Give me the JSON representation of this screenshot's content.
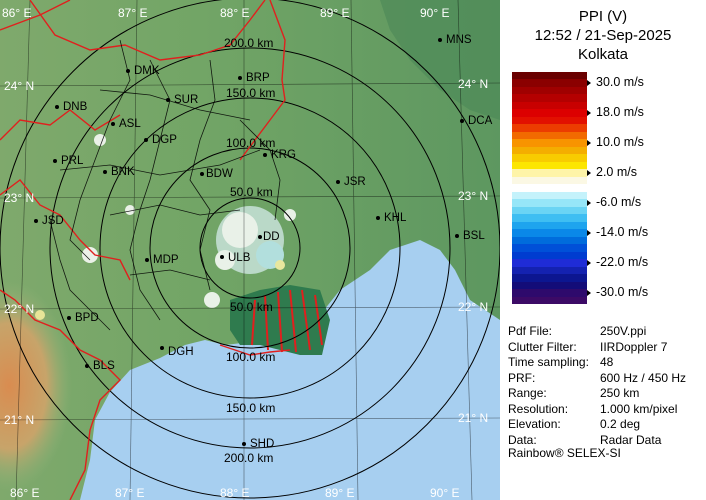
{
  "panel": {
    "title": "PPI (V)",
    "datetime": "12:52 / 21-Sep-2025",
    "station": "Kolkata",
    "colorbar": {
      "colors": [
        "#6a0000",
        "#8b0000",
        "#a00000",
        "#b40000",
        "#c80000",
        "#dc0000",
        "#e21000",
        "#ec3c00",
        "#f26a00",
        "#f89400",
        "#f4ae00",
        "#f8cc00",
        "#fce600",
        "#fef4a8",
        "#fbf8e4",
        "#ffffff",
        "#c4f2fb",
        "#96e6f8",
        "#6ad4f4",
        "#3ebef2",
        "#1ea4ee",
        "#0a88e8",
        "#006cdc",
        "#0050d8",
        "#003cd0",
        "#1f2cd6",
        "#1422b0",
        "#0c1690",
        "#130c78",
        "#2e0a6c",
        "#3c0a66"
      ],
      "labels": [
        {
          "text": "30.0 m/s",
          "row": 1
        },
        {
          "text": "18.0 m/s",
          "row": 5
        },
        {
          "text": "10.0 m/s",
          "row": 9
        },
        {
          "text": "2.0 m/s",
          "row": 13
        },
        {
          "text": "-6.0 m/s",
          "row": 17
        },
        {
          "text": "-14.0 m/s",
          "row": 21
        },
        {
          "text": "-22.0 m/s",
          "row": 25
        },
        {
          "text": "-30.0 m/s",
          "row": 29
        }
      ]
    },
    "info": [
      {
        "key": "Pdf File:",
        "value": "250V.ppi"
      },
      {
        "key": "Clutter Filter:",
        "value": "IIRDoppler 7"
      },
      {
        "key": "Time sampling:",
        "value": "48"
      },
      {
        "key": "PRF:",
        "value": "600 Hz / 450 Hz"
      },
      {
        "key": "Range:",
        "value": "250 km"
      },
      {
        "key": "Resolution:",
        "value": "1.000 km/pixel"
      },
      {
        "key": "Elevation:",
        "value": "0.2 deg"
      },
      {
        "key": "Data:",
        "value": "Radar Data"
      }
    ],
    "footer": "Rainbow® SELEX-SI"
  },
  "map": {
    "lon_labels_top": [
      "86° E",
      "87° E",
      "88° E",
      "89° E",
      "90° E"
    ],
    "lon_labels_bottom": [
      "86° E",
      "87° E",
      "88° E",
      "89° E",
      "90° E"
    ],
    "lat_labels_left": [
      "24° N",
      "23° N",
      "22° N",
      "21° N"
    ],
    "lat_labels_right": [
      "24° N",
      "23° N",
      "22° N",
      "21° N"
    ],
    "ring_labels": [
      "50.0 km",
      "100.0 km",
      "150.0 km",
      "200.0 km",
      "150.0 km",
      "200.0 km",
      "50.0 km",
      "100.0 km"
    ],
    "stations": [
      "MNS",
      "DMK",
      "BRP",
      "DNB",
      "SUR",
      "DCA",
      "ASL",
      "DGP",
      "KRG",
      "PRL",
      "BNK",
      "BDW",
      "JSR",
      "JSD",
      "KHL",
      "DD",
      "BSL",
      "MDP",
      "ULB",
      "BPD",
      "DGH",
      "BLS",
      "SHD"
    ],
    "colors": {
      "sea": "#a7cff0",
      "land_low": "#8cb87a",
      "land_high": "#c98a5a",
      "border_state": "#e0201e",
      "border_district": "#000000"
    }
  }
}
